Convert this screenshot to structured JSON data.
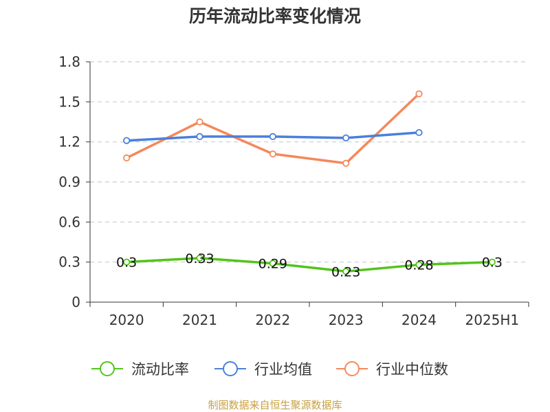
{
  "chart_data": {
    "type": "line",
    "title": "历年流动比率变化情况",
    "categories": [
      "2020",
      "2021",
      "2022",
      "2023",
      "2024",
      "2025H1"
    ],
    "ylim": [
      0,
      1.8
    ],
    "yticks": [
      0,
      0.3,
      0.6,
      0.9,
      1.2,
      1.5,
      1.8
    ],
    "ytick_labels": [
      "0",
      "0.3",
      "0.6",
      "0.9",
      "1.2",
      "1.5",
      "1.8"
    ],
    "grid": true,
    "legend_position": "bottom",
    "series": [
      {
        "name": "流动比率",
        "color": "#52c41a",
        "values": [
          0.3,
          0.33,
          0.29,
          0.23,
          0.28,
          0.3
        ],
        "labels": [
          "0.3",
          "0.33",
          "0.29",
          "0.23",
          "0.28",
          "0.3"
        ]
      },
      {
        "name": "行业均值",
        "color": "#4a7fdc",
        "values": [
          1.21,
          1.24,
          1.24,
          1.23,
          1.27,
          null
        ]
      },
      {
        "name": "行业中位数",
        "color": "#f5885a",
        "values": [
          1.08,
          1.35,
          1.11,
          1.04,
          1.56,
          null
        ]
      }
    ]
  },
  "source": "制图数据来自恒生聚源数据库"
}
